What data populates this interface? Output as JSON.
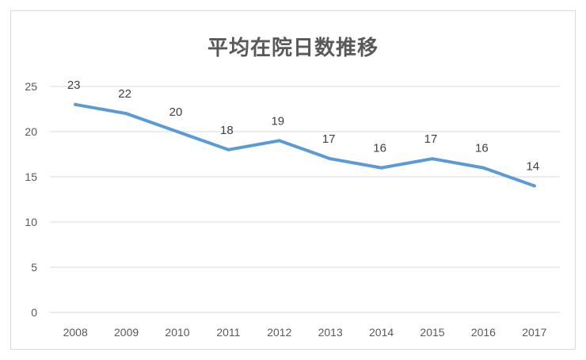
{
  "chart_data": {
    "type": "line",
    "title": "平均在院日数推移",
    "xlabel": "",
    "ylabel": "",
    "categories": [
      "2008",
      "2009",
      "2010",
      "2011",
      "2012",
      "2013",
      "2014",
      "2015",
      "2016",
      "2017"
    ],
    "series": [
      {
        "values": [
          23,
          22,
          20,
          18,
          19,
          17,
          16,
          17,
          16,
          14
        ],
        "color": "#5b9bd5"
      }
    ],
    "ylim": [
      0,
      25
    ],
    "yticks": [
      0,
      5,
      10,
      15,
      20,
      25
    ],
    "grid": true,
    "legend": "none",
    "data_labels": true
  }
}
